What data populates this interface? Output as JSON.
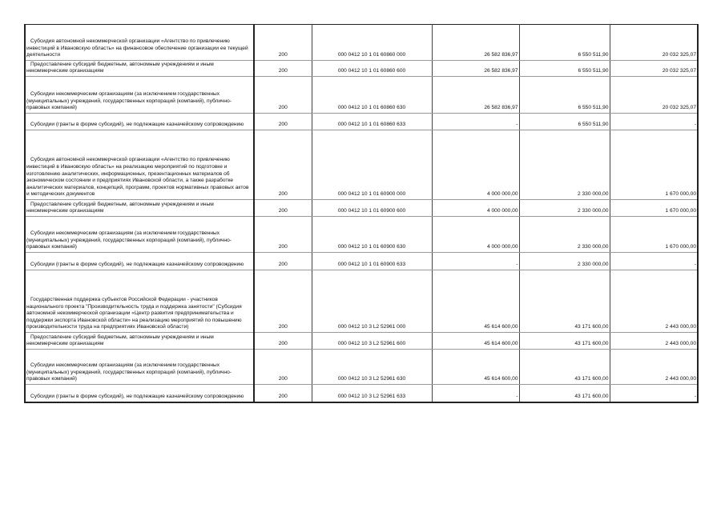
{
  "rows": [
    {
      "desc": "Субсидия автономной некоммерческой организации «Агентство по привлечению инвестиций в Ивановскую область» на финансовое обеспечение организации ее текущей деятельности",
      "admin": "200",
      "code": "000 0412 10 1 01 60860 000",
      "v1": "26 582 836,97",
      "v2": "6 550 511,90",
      "v3": "20 032 325,07"
    },
    {
      "desc": "Предоставление субсидий бюджетным, автономным учреждениям и иным некоммерческим организациям",
      "admin": "200",
      "code": "000 0412 10 1 01 60860 600",
      "v1": "26 582 836,97",
      "v2": "6 550 511,90",
      "v3": "20 032 325,07"
    },
    {
      "desc": "Субсидии некоммерческим организациям (за исключением государственных (муниципальных) учреждений, государственных корпораций (компаний), публично-правовых компаний)",
      "admin": "200",
      "code": "000 0412 10 1 01 60860 630",
      "v1": "26 582 836,97",
      "v2": "6 550 511,90",
      "v3": "20 032 325,07"
    },
    {
      "desc": "Субсидии (гранты в форме субсидий), не подлежащие казначейскому сопровождению",
      "admin": "200",
      "code": "000 0412 10 1 01 60860 633",
      "v1": "-",
      "v2": "6 550 511,90",
      "v3": "-"
    },
    {
      "desc": "Субсидия автономной некоммерческой организации «Агентство по привлечению инвестиций в Ивановскую область» на реализацию мероприятий по подготовке и изготовлению аналитических, информационных, презентационных материалов об экономическом состоянии и предприятиях Ивановской области, а также разработке аналитических материалов, концепций, программ, проектов нормативных правовых актов и методических документов",
      "admin": "200",
      "code": "000 0412 10 1 01 60900 000",
      "v1": "4 000 000,00",
      "v2": "2 330 000,00",
      "v3": "1 670 000,00"
    },
    {
      "desc": "Предоставление субсидий бюджетным, автономным учреждениям и иным некоммерческим организациям",
      "admin": "200",
      "code": "000 0412 10 1 01 60900 600",
      "v1": "4 000 000,00",
      "v2": "2 330 000,00",
      "v3": "1 670 000,00"
    },
    {
      "desc": "Субсидии некоммерческим организациям (за исключением государственных (муниципальных) учреждений, государственных корпораций (компаний), публично-правовых компаний)",
      "admin": "200",
      "code": "000 0412 10 1 01 60900 630",
      "v1": "4 000 000,00",
      "v2": "2 330 000,00",
      "v3": "1 670 000,00"
    },
    {
      "desc": "Субсидии (гранты в форме субсидий), не подлежащие казначейскому сопровождению",
      "admin": "200",
      "code": "000 0412 10 1 01 60900 633",
      "v1": "-",
      "v2": "2 330 000,00",
      "v3": "-"
    },
    {
      "desc": "Государственная поддержка субъектов Российской Федерации - участников национального проекта \"Производительность труда и поддержка занятости\"  (Субсидия автономной некоммерческой организации «Центр развития предпринимательства и поддержки экспорта Ивановской области» на реализацию мероприятий по повышению производительности труда на предприятиях Ивановской области)",
      "admin": "200",
      "code": "000 0412 10 3 L2 52961 000",
      "v1": "45 614 600,00",
      "v2": "43 171 600,00",
      "v3": "2 443 000,00"
    },
    {
      "desc": "Предоставление субсидий бюджетным, автономным учреждениям и иным некоммерческим организациям",
      "admin": "200",
      "code": "000 0412 10 3 L2 52961 600",
      "v1": "45 614 600,00",
      "v2": "43 171 600,00",
      "v3": "2 443 000,00"
    },
    {
      "desc": "Субсидии некоммерческим организациям (за исключением государственных (муниципальных) учреждений, государственных корпораций (компаний), публично-правовых компаний)",
      "admin": "200",
      "code": "000 0412 10 3 L2 52961 630",
      "v1": "45 614 600,00",
      "v2": "43 171 600,00",
      "v3": "2 443 000,00"
    },
    {
      "desc": "Субсидии (гранты в форме субсидий), не подлежащие казначейскому сопровождению",
      "admin": "200",
      "code": "000 0412 10 3 L2 52961 633",
      "v1": "-",
      "v2": "43 171 600,00",
      "v3": "-"
    }
  ]
}
